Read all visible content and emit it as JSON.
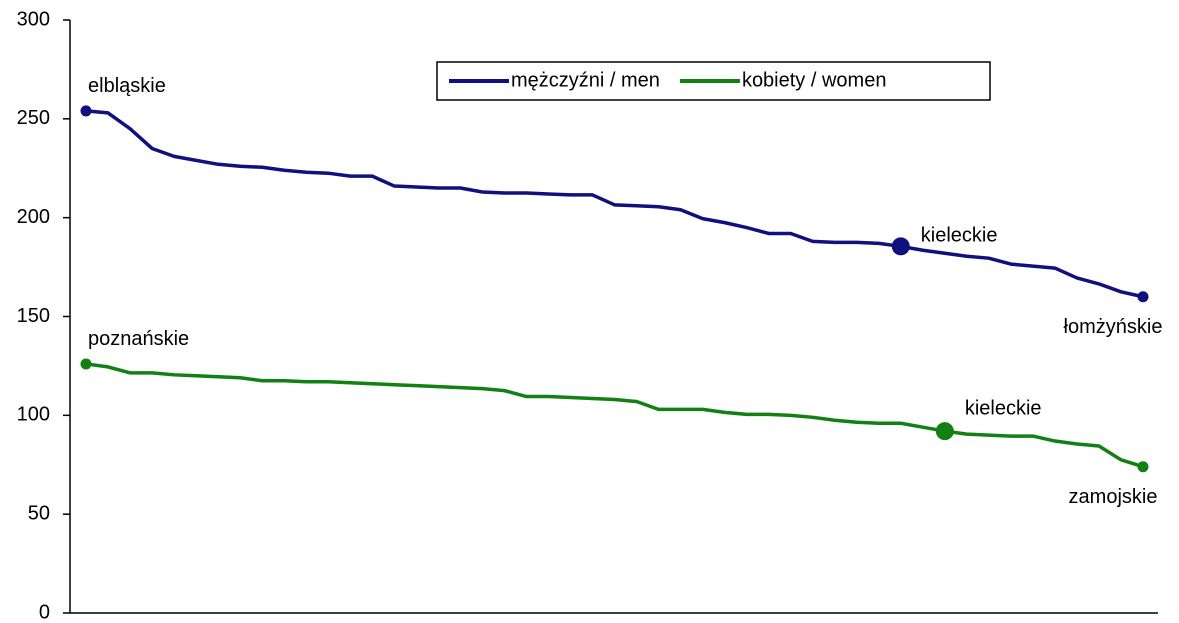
{
  "chart_data": {
    "type": "line",
    "categories": [
      null,
      null,
      null,
      null,
      null,
      null,
      null,
      null,
      null,
      null,
      null,
      null,
      null,
      null,
      null,
      null,
      null,
      null,
      null,
      null,
      null,
      null,
      null,
      null,
      null,
      null,
      null,
      null,
      null,
      null,
      null,
      null,
      null,
      null,
      null,
      null,
      null,
      null,
      null,
      null,
      null,
      null,
      null,
      null,
      null,
      null,
      null,
      null,
      null
    ],
    "series": [
      {
        "name": "mężczyźni / men",
        "color": "#10107f",
        "values": [
          254,
          253,
          245,
          235,
          231,
          229,
          227,
          226,
          225.5,
          224,
          223,
          222.5,
          221,
          221,
          216,
          215.5,
          215,
          215,
          213,
          212.5,
          212.5,
          212,
          211.5,
          211.5,
          206.5,
          206,
          205.5,
          204,
          199.5,
          197.5,
          195,
          192,
          192,
          188,
          187.5,
          187.5,
          187,
          185.5,
          183.5,
          182,
          180.5,
          179.5,
          176.5,
          175.5,
          174.5,
          169.5,
          166.5,
          162.5,
          160
        ],
        "point_labels": [
          "elbląskie",
          null,
          null,
          null,
          null,
          null,
          null,
          null,
          null,
          null,
          null,
          null,
          null,
          null,
          null,
          null,
          null,
          null,
          null,
          null,
          null,
          null,
          null,
          null,
          null,
          null,
          null,
          null,
          null,
          null,
          null,
          null,
          null,
          null,
          null,
          null,
          null,
          "kieleckie",
          null,
          null,
          null,
          null,
          null,
          null,
          null,
          null,
          null,
          null,
          "łomżyńskie"
        ]
      },
      {
        "name": "kobiety / women",
        "color": "#128012",
        "values": [
          126,
          124.5,
          121.5,
          121.5,
          120.5,
          120,
          119.5,
          119,
          117.5,
          117.5,
          117,
          117,
          116.5,
          116,
          115.5,
          115,
          114.5,
          114,
          113.5,
          112.5,
          109.5,
          109.5,
          109,
          108.5,
          108,
          107,
          103,
          103,
          103,
          101.5,
          100.5,
          100.5,
          100,
          99,
          97.5,
          96.5,
          96,
          96,
          94,
          92,
          90.5,
          90,
          89.5,
          89.5,
          87,
          85.5,
          84.5,
          77.5,
          74
        ],
        "point_labels": [
          "poznańskie",
          null,
          null,
          null,
          null,
          null,
          null,
          null,
          null,
          null,
          null,
          null,
          null,
          null,
          null,
          null,
          null,
          null,
          null,
          null,
          null,
          null,
          null,
          null,
          null,
          null,
          null,
          null,
          null,
          null,
          null,
          null,
          null,
          null,
          null,
          null,
          null,
          null,
          null,
          "kieleckie",
          null,
          null,
          null,
          null,
          null,
          null,
          null,
          null,
          "zamojskie"
        ]
      }
    ],
    "ylim": [
      0,
      300
    ],
    "yticks": [
      0,
      50,
      100,
      150,
      200,
      250,
      300
    ],
    "grid": false,
    "legend": "top"
  }
}
